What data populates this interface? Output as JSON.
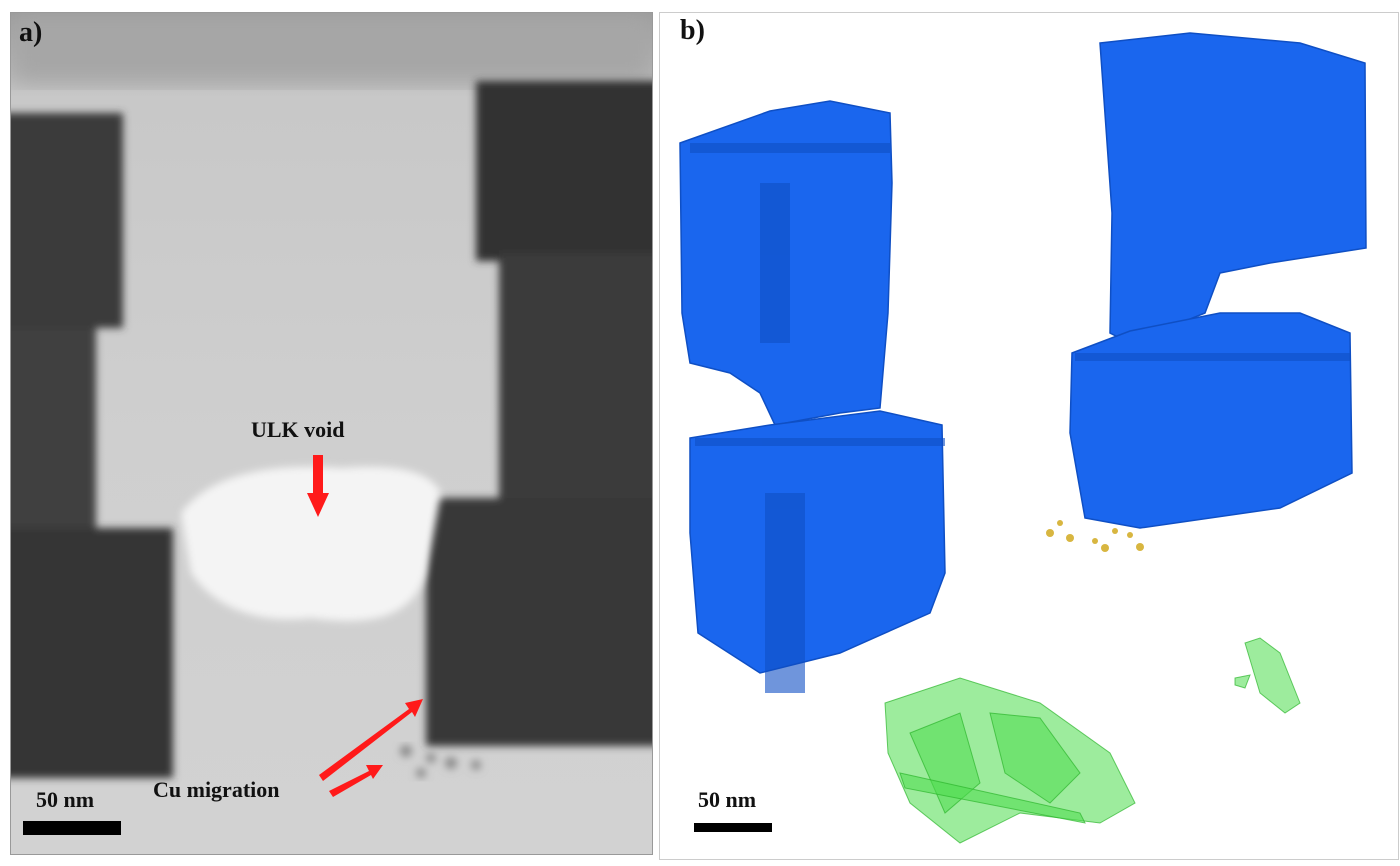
{
  "panel_a": {
    "label": "a)",
    "annotations": {
      "void": "ULK void",
      "migration": "Cu migration"
    },
    "scale_bar": "50 nm",
    "arrow_color": "#ff1a1a"
  },
  "panel_b": {
    "label": "b)",
    "scale_bar": "50 nm",
    "colors": {
      "copper_lines": "#1565e8",
      "void": "#4ddc4d",
      "cu_particles": "#d8b640"
    }
  }
}
